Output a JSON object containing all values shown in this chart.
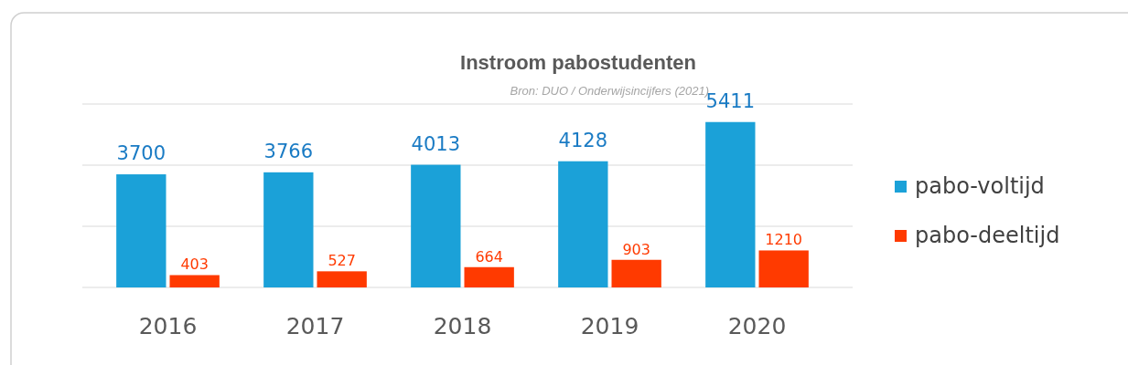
{
  "chart_data": {
    "type": "bar",
    "title": "Instroom pabostudenten",
    "subtitle": "Bron: DUO / Onderwijsincijfers (2021)",
    "categories": [
      "2016",
      "2017",
      "2018",
      "2019",
      "2020"
    ],
    "series": [
      {
        "name": "pabo-voltijd",
        "color": "#1ba1d8",
        "values": [
          3700,
          3766,
          4013,
          4128,
          5411
        ]
      },
      {
        "name": "pabo-deeltijd",
        "color": "#ff3a00",
        "values": [
          403,
          527,
          664,
          903,
          1210
        ]
      }
    ],
    "ylim": [
      0,
      6000
    ],
    "yticks": [
      {
        "value": 0,
        "label": null
      },
      {
        "value": 2000,
        "label": null
      },
      {
        "value": 4000,
        "label": null
      },
      {
        "value": 6000,
        "label": null
      }
    ],
    "grid": "y",
    "tick_labels": "x",
    "data_labels": true,
    "legend": "right"
  }
}
